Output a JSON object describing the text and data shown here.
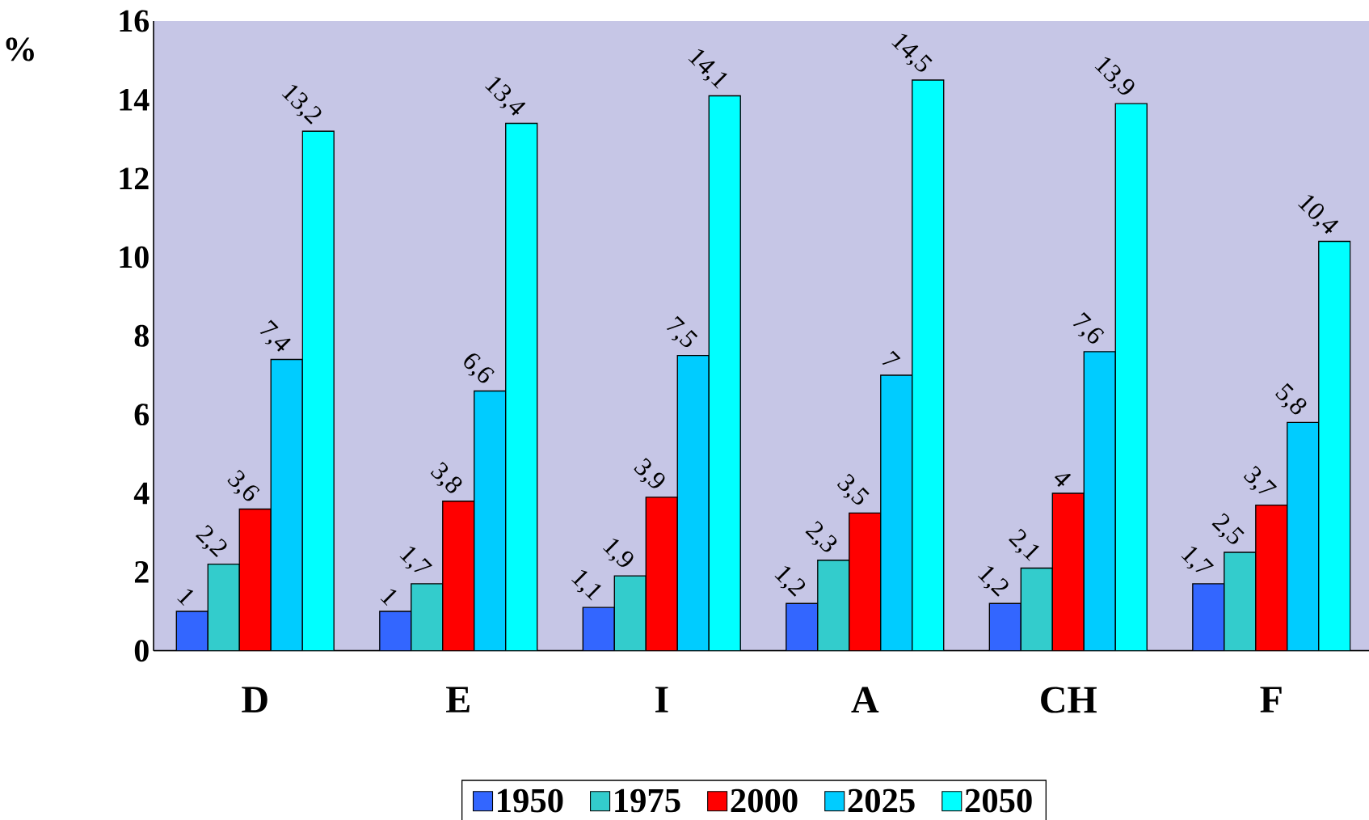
{
  "chart_data": {
    "type": "bar",
    "ylabel": "%",
    "categories": [
      "D",
      "E",
      "I",
      "A",
      "CH",
      "F"
    ],
    "series": [
      {
        "name": "1950",
        "color": "#3366ff",
        "values": [
          1,
          1,
          1.1,
          1.2,
          1.2,
          1.7
        ],
        "value_labels": [
          "1",
          "1",
          "1,1",
          "1,2",
          "1,2",
          "1,7"
        ]
      },
      {
        "name": "1975",
        "color": "#33cccc",
        "values": [
          2.2,
          1.7,
          1.9,
          2.3,
          2.1,
          2.5
        ],
        "value_labels": [
          "2,2",
          "1,7",
          "1,9",
          "2,3",
          "2,1",
          "2,5"
        ]
      },
      {
        "name": "2000",
        "color": "#ff0000",
        "values": [
          3.6,
          3.8,
          3.9,
          3.5,
          4,
          3.7
        ],
        "value_labels": [
          "3,6",
          "3,8",
          "3,9",
          "3,5",
          "4",
          "3,7"
        ]
      },
      {
        "name": "2025",
        "color": "#00ccff",
        "values": [
          7.4,
          6.6,
          7.5,
          7,
          7.6,
          5.8
        ],
        "value_labels": [
          "7,4",
          "6,6",
          "7,5",
          "7",
          "7,6",
          "5,8"
        ]
      },
      {
        "name": "2050",
        "color": "#00ffff",
        "values": [
          13.2,
          13.4,
          14.1,
          14.5,
          13.9,
          10.4
        ],
        "value_labels": [
          "13,2",
          "13,4",
          "14,1",
          "14,5",
          "13,9",
          "10,4"
        ]
      }
    ],
    "ylim": [
      0,
      16
    ],
    "yticks": [
      0,
      2,
      4,
      6,
      8,
      10,
      12,
      14,
      16
    ],
    "legend": "bottom"
  }
}
